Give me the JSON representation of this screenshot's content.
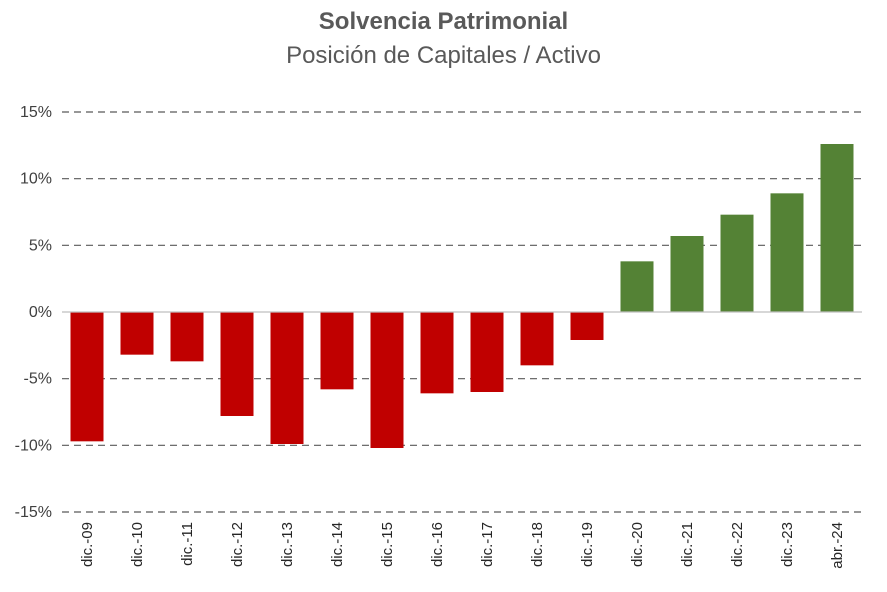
{
  "chart_data": {
    "type": "bar",
    "title": "Solvencia Patrimonial",
    "subtitle": "Posición de Capitales / Activo",
    "categories": [
      "dic.-09",
      "dic.-10",
      "dic.-11",
      "dic.-12",
      "dic.-13",
      "dic.-14",
      "dic.-15",
      "dic.-16",
      "dic.-17",
      "dic.-18",
      "dic.-19",
      "dic.-20",
      "dic.-21",
      "dic.-22",
      "dic.-23",
      "abr.-24"
    ],
    "values": [
      -9.7,
      -3.2,
      -3.7,
      -7.8,
      -9.9,
      -5.8,
      -10.2,
      -6.1,
      -6.0,
      -4.0,
      -2.1,
      3.8,
      5.7,
      7.3,
      8.9,
      12.6
    ],
    "ylim": [
      -15,
      15
    ],
    "yticks": [
      -15,
      -10,
      -5,
      0,
      5,
      10,
      15
    ],
    "ytick_labels": [
      "-15%",
      "-10%",
      "-5%",
      "0%",
      "5%",
      "10%",
      "15%"
    ],
    "grid": true,
    "colors": {
      "negative": "#C00000",
      "positive": "#548235",
      "grid": "#595959",
      "axis": "#BFBFBF"
    }
  }
}
